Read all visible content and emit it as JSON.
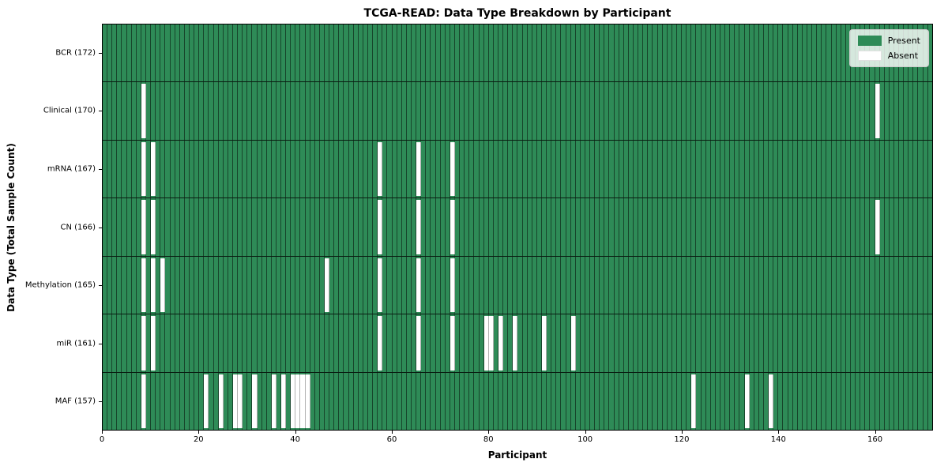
{
  "chart_data": {
    "type": "heatmap",
    "title": "TCGA-READ: Data Type Breakdown by Participant",
    "xlabel": "Participant",
    "ylabel": "Data Type (Total Sample Count)",
    "n_participants": 172,
    "x_ticks": [
      0,
      20,
      40,
      60,
      80,
      100,
      120,
      140,
      160
    ],
    "grid": "cell-borders-on",
    "legend": {
      "position": "upper-right",
      "entries": [
        {
          "label": "Present",
          "color": "#2e8b57"
        },
        {
          "label": "Absent",
          "color": "#ffffff"
        }
      ]
    },
    "rows": [
      {
        "label": "BCR (172)",
        "data_type": "BCR",
        "total_sample_count": 172,
        "absent_participants": []
      },
      {
        "label": "Clinical (170)",
        "data_type": "Clinical",
        "total_sample_count": 170,
        "absent_participants": [
          8,
          160
        ]
      },
      {
        "label": "mRNA (167)",
        "data_type": "mRNA",
        "total_sample_count": 167,
        "absent_participants": [
          8,
          10,
          57,
          65,
          72
        ]
      },
      {
        "label": "CN (166)",
        "data_type": "CN",
        "total_sample_count": 166,
        "absent_participants": [
          8,
          10,
          57,
          65,
          72,
          160
        ]
      },
      {
        "label": "Methylation (165)",
        "data_type": "Methylation",
        "total_sample_count": 165,
        "absent_participants": [
          8,
          10,
          12,
          46,
          57,
          65,
          72
        ]
      },
      {
        "label": "miR (161)",
        "data_type": "miR",
        "total_sample_count": 161,
        "absent_participants": [
          8,
          10,
          57,
          65,
          72,
          79,
          80,
          82,
          85,
          91,
          97
        ]
      },
      {
        "label": "MAF (157)",
        "data_type": "MAF",
        "total_sample_count": 157,
        "absent_participants": [
          8,
          21,
          24,
          27,
          28,
          31,
          35,
          37,
          39,
          40,
          41,
          42,
          122,
          133,
          138
        ]
      }
    ],
    "colors": {
      "present": "#2e8b57",
      "absent": "#ffffff",
      "gridline": "rgba(0,0,0,0.5)",
      "gridline_absent": "rgba(0,0,0,0.3)",
      "row_line": "rgba(0,0,0,0.8)",
      "spine": "#000000",
      "legend_bg": "rgba(255,255,255,0.8)",
      "legend_border": "#cccccc",
      "background": "#ffffff"
    }
  }
}
